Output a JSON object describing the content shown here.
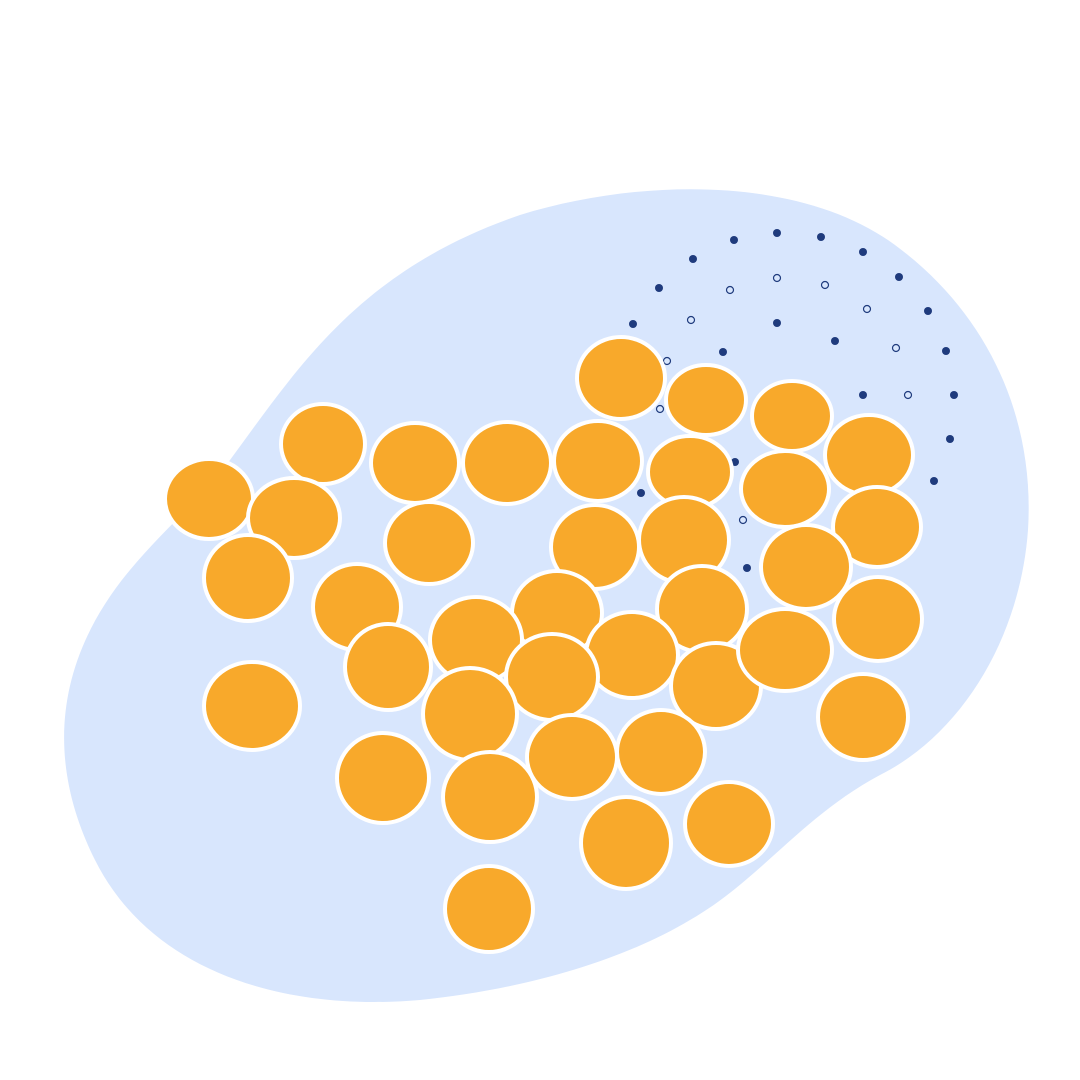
{
  "illustration": {
    "colors": {
      "background": "#ffffff",
      "blob": "#d8e6fd",
      "dot": "#1f3b7d",
      "circle_fill": "#f8a92b",
      "circle_stroke": "#ffffff"
    },
    "icons": [
      "blob-shape",
      "dot-pattern",
      "orange-circles-cluster"
    ]
  }
}
